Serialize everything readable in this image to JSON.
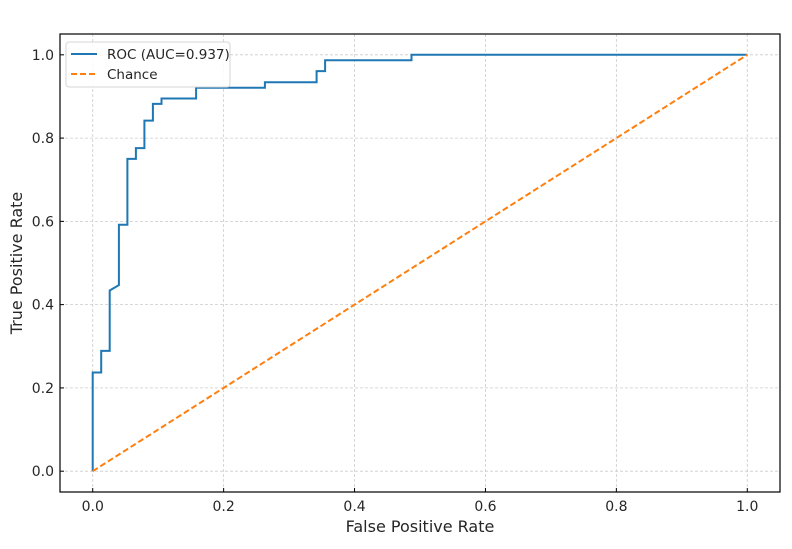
{
  "chart_data": {
    "type": "line",
    "title": "",
    "xlabel": "False Positive Rate",
    "ylabel": "True Positive Rate",
    "xlim": [
      -0.05,
      1.05
    ],
    "ylim": [
      -0.05,
      1.05
    ],
    "xticks": [
      "0.0",
      "0.2",
      "0.4",
      "0.6",
      "0.8",
      "1.0"
    ],
    "yticks": [
      "0.0",
      "0.2",
      "0.4",
      "0.6",
      "0.8",
      "1.0"
    ],
    "grid": true,
    "legend_position": "top-left",
    "series": [
      {
        "name": "ROC (AUC=0.937)",
        "color": "#1f77b4",
        "style": "solid",
        "x": [
          0,
          0,
          0.013,
          0.013,
          0.026,
          0.026,
          0.04,
          0.04,
          0.053,
          0.053,
          0.066,
          0.066,
          0.079,
          0.079,
          0.092,
          0.092,
          0.105,
          0.105,
          0.158,
          0.158,
          0.263,
          0.263,
          0.342,
          0.342,
          0.355,
          0.355,
          0.487,
          0.487,
          1.0
        ],
        "y": [
          0,
          0.237,
          0.237,
          0.289,
          0.289,
          0.434,
          0.447,
          0.592,
          0.592,
          0.75,
          0.75,
          0.776,
          0.776,
          0.842,
          0.842,
          0.882,
          0.882,
          0.895,
          0.895,
          0.921,
          0.921,
          0.934,
          0.934,
          0.961,
          0.961,
          0.987,
          0.987,
          1.0,
          1.0
        ]
      },
      {
        "name": "Chance",
        "color": "#ff7f0e",
        "style": "dashed",
        "x": [
          0,
          1
        ],
        "y": [
          0,
          1
        ]
      }
    ]
  }
}
